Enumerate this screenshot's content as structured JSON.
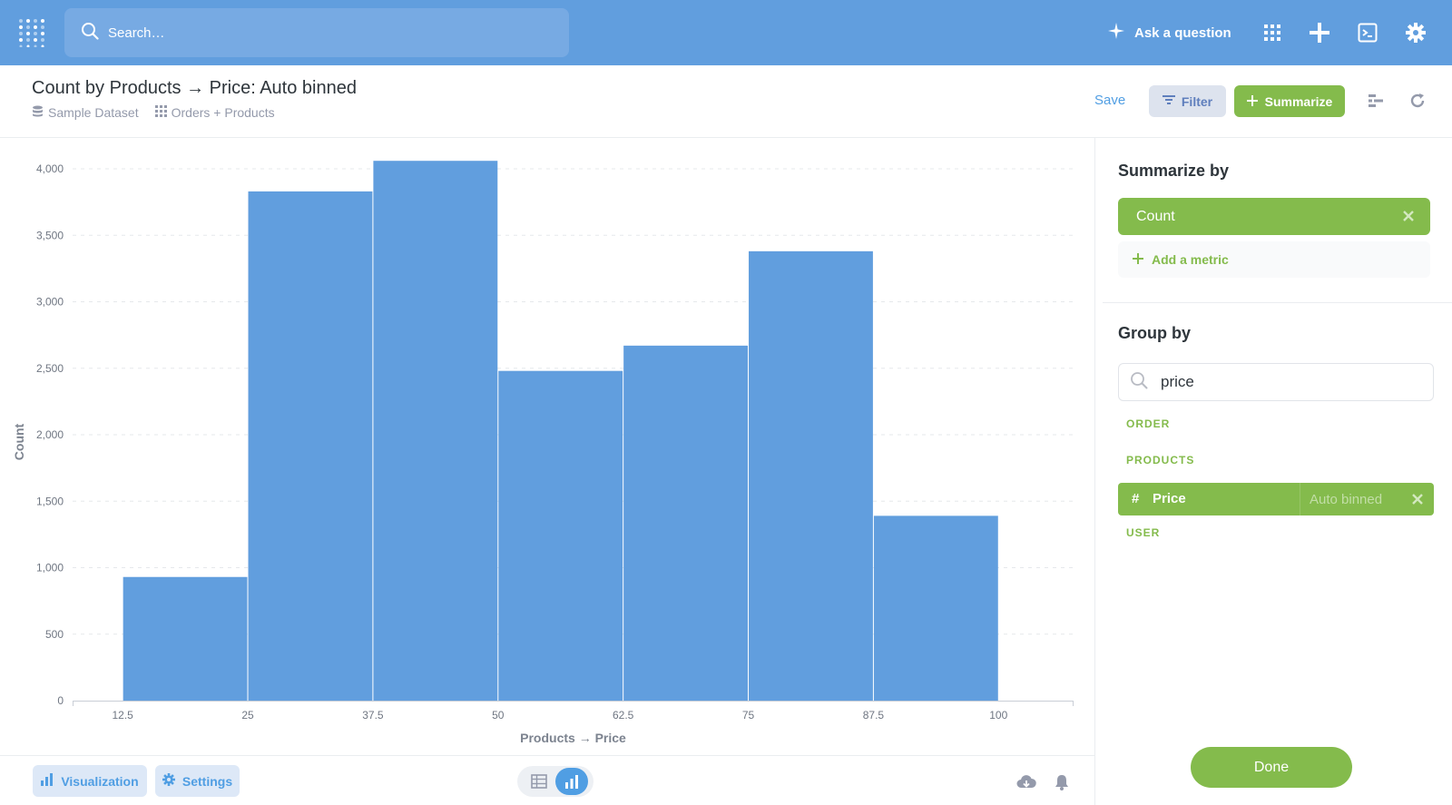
{
  "nav": {
    "search_placeholder": "Search…",
    "ask_label": "Ask a question",
    "icons": [
      "metabase-logo-icon",
      "sparkle-icon",
      "grid-icon",
      "plus-icon",
      "terminal-icon",
      "gear-icon"
    ]
  },
  "header": {
    "title": "Count by Products → Price: Auto binned",
    "breadcrumbs": [
      "Sample Dataset",
      "Orders + Products"
    ],
    "save_label": "Save",
    "filter_label": "Filter",
    "summarize_label": "Summarize"
  },
  "chart_data": {
    "type": "bar",
    "x_ticks": [
      "12.5",
      "25",
      "37.5",
      "50",
      "62.5",
      "75",
      "87.5",
      "100"
    ],
    "bins": [
      {
        "start": 12.5,
        "end": 25,
        "count": 930
      },
      {
        "start": 25,
        "end": 37.5,
        "count": 3830
      },
      {
        "start": 37.5,
        "end": 50,
        "count": 4060
      },
      {
        "start": 50,
        "end": 62.5,
        "count": 2480
      },
      {
        "start": 62.5,
        "end": 75,
        "count": 2670
      },
      {
        "start": 75,
        "end": 87.5,
        "count": 3380
      },
      {
        "start": 87.5,
        "end": 100,
        "count": 1390
      }
    ],
    "y_ticks": [
      "0",
      "500",
      "1,000",
      "1,500",
      "2,000",
      "2,500",
      "3,000",
      "3,500",
      "4,000"
    ],
    "ylim": [
      0,
      4000
    ],
    "xlabel": "Products → Price",
    "ylabel": "Count",
    "bar_color": "#619ede",
    "grid": true
  },
  "bottom": {
    "visualization_label": "Visualization",
    "settings_label": "Settings"
  },
  "sidebar": {
    "summarize_heading": "Summarize by",
    "metric": "Count",
    "add_metric_label": "Add a metric",
    "group_heading": "Group by",
    "search_value": "price",
    "sections": [
      "ORDER",
      "PRODUCTS",
      "USER"
    ],
    "selected_field": {
      "hash": "#",
      "name": "Price",
      "binning": "Auto binned"
    },
    "done_label": "Done"
  },
  "colors": {
    "nav_blue": "#619ede",
    "brand_green": "#84bb4c",
    "link_blue": "#509ee3"
  }
}
